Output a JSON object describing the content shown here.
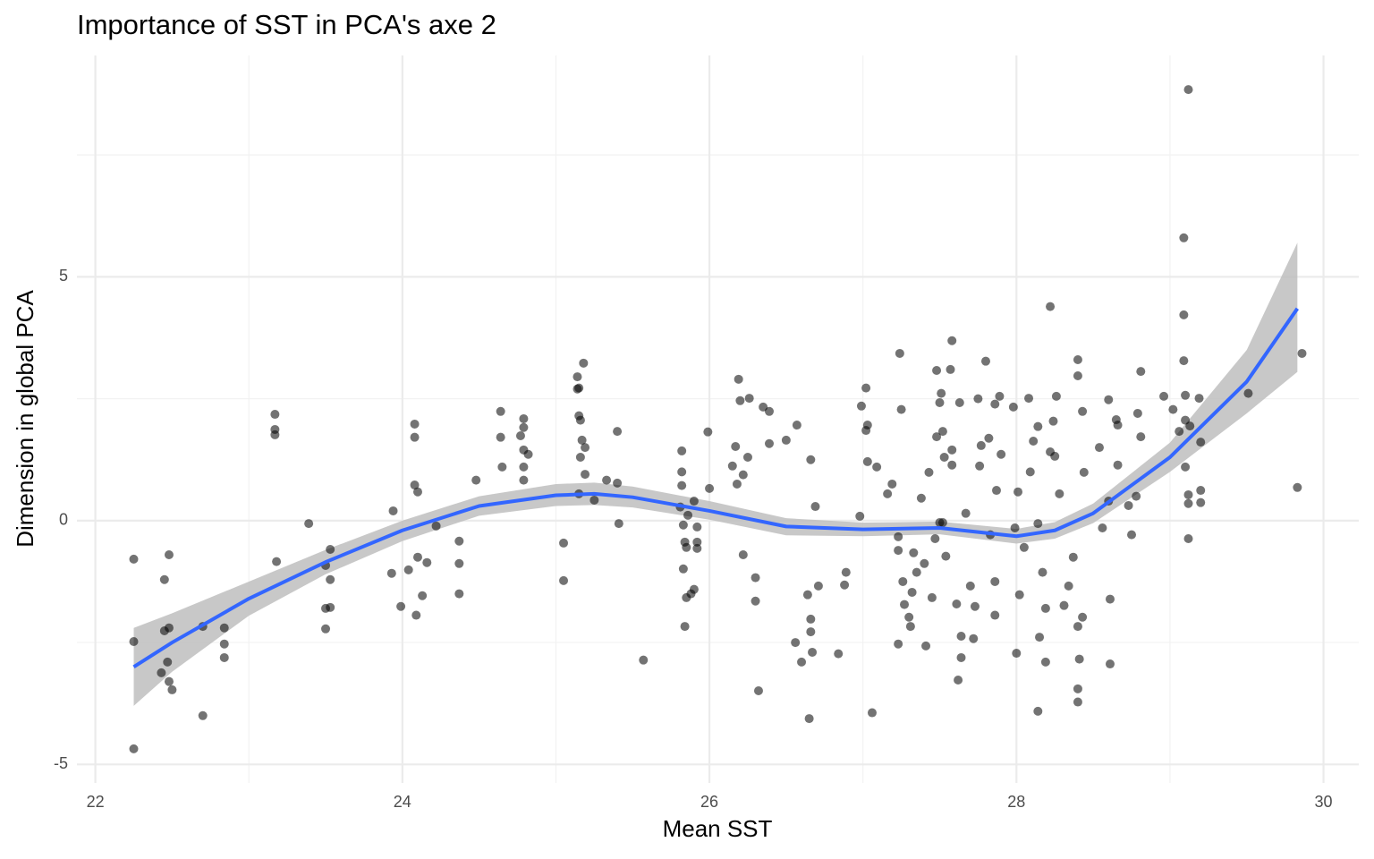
{
  "chart_data": {
    "type": "scatter",
    "title": "Importance of SST in PCA's axe 2",
    "x_label": "Mean SST",
    "y_label": "Dimension  in global PCA",
    "xlim": [
      21.88,
      30.23
    ],
    "ylim": [
      -5.38,
      9.54
    ],
    "xticks": [
      22,
      24,
      26,
      28,
      30
    ],
    "yticks": [
      -5,
      0,
      5
    ],
    "xminor": [
      23,
      25,
      27,
      29
    ],
    "yminor": [
      -2.5,
      2.5,
      7.5
    ],
    "grid": true,
    "color": "#000000",
    "x": [
      22.25,
      22.25,
      22.25,
      22.45,
      22.48,
      22.45,
      22.48,
      22.47,
      22.43,
      22.48,
      22.5,
      22.7,
      22.7,
      22.84,
      22.84,
      22.84,
      23.17,
      23.17,
      23.17,
      23.18,
      23.39,
      23.5,
      23.5,
      23.5,
      23.53,
      23.53,
      23.53,
      23.94,
      23.93,
      23.99,
      24.04,
      24.08,
      24.08,
      24.08,
      24.1,
      24.09,
      24.1,
      24.13,
      24.16,
      24.22,
      24.37,
      24.37,
      24.37,
      24.48,
      24.64,
      24.64,
      24.79,
      24.79,
      24.77,
      24.79,
      24.79,
      24.79,
      24.82,
      24.65,
      25.05,
      25.05,
      25.14,
      25.14,
      25.18,
      25.15,
      25.15,
      25.16,
      25.17,
      25.16,
      25.19,
      25.19,
      25.15,
      25.25,
      25.33,
      25.4,
      25.4,
      25.41,
      25.57,
      25.82,
      25.82,
      25.82,
      25.81,
      25.83,
      25.84,
      25.85,
      25.83,
      25.85,
      25.84,
      25.86,
      25.9,
      25.9,
      25.88,
      25.92,
      25.92,
      25.92,
      25.99,
      26.0,
      26.15,
      26.17,
      26.19,
      26.2,
      26.26,
      26.25,
      26.22,
      26.18,
      26.22,
      26.3,
      26.3,
      26.32,
      26.35,
      26.39,
      26.39,
      26.5,
      26.57,
      26.56,
      26.6,
      26.66,
      26.64,
      26.66,
      26.66,
      26.67,
      26.65,
      26.69,
      26.71,
      26.84,
      26.89,
      26.88,
      26.99,
      27.02,
      27.03,
      27.02,
      27.03,
      26.98,
      27.06,
      27.09,
      27.16,
      27.19,
      27.24,
      27.25,
      27.23,
      27.23,
      27.23,
      27.26,
      27.27,
      27.3,
      27.31,
      27.33,
      27.35,
      27.32,
      27.38,
      27.41,
      27.4,
      27.43,
      27.45,
      27.48,
      27.47,
      27.5,
      27.5,
      27.51,
      27.48,
      27.52,
      27.53,
      27.52,
      27.58,
      27.57,
      27.58,
      27.58,
      27.54,
      27.61,
      27.62,
      27.64,
      27.63,
      27.64,
      27.67,
      27.7,
      27.72,
      27.73,
      27.75,
      27.77,
      27.76,
      27.8,
      27.82,
      27.83,
      27.86,
      27.86,
      27.86,
      27.87,
      27.89,
      27.9,
      27.98,
      27.99,
      28.0,
      28.01,
      28.02,
      28.05,
      28.08,
      28.09,
      28.11,
      28.14,
      28.14,
      28.14,
      28.15,
      28.17,
      28.19,
      28.19,
      28.22,
      28.22,
      28.24,
      28.25,
      28.26,
      28.28,
      28.31,
      28.34,
      28.37,
      28.4,
      28.4,
      28.4,
      28.4,
      28.41,
      28.4,
      28.43,
      28.43,
      28.44,
      28.54,
      28.56,
      28.6,
      28.6,
      28.61,
      28.61,
      28.65,
      28.66,
      28.66,
      28.73,
      28.75,
      28.79,
      28.81,
      28.78,
      28.81,
      28.96,
      29.02,
      29.06,
      29.09,
      29.09,
      29.09,
      29.1,
      29.1,
      29.12,
      29.1,
      29.12,
      29.12,
      29.12,
      29.13,
      29.19,
      29.2,
      29.2,
      29.2,
      29.51,
      29.83,
      29.86
    ],
    "y": [
      -0.79,
      -2.48,
      -4.68,
      -1.21,
      -0.7,
      -2.26,
      -2.2,
      -2.9,
      -3.12,
      -3.3,
      -3.47,
      -2.17,
      -4.0,
      -2.2,
      -2.53,
      -2.81,
      2.18,
      1.87,
      1.76,
      -0.84,
      -0.06,
      -0.92,
      -1.8,
      -2.22,
      -0.59,
      -1.21,
      -1.78,
      0.2,
      -1.08,
      -1.76,
      -1.01,
      1.98,
      1.71,
      0.73,
      0.59,
      -1.94,
      -0.75,
      -1.54,
      -0.86,
      -0.11,
      -0.42,
      -0.88,
      -1.5,
      0.83,
      2.24,
      1.71,
      2.09,
      1.91,
      1.74,
      1.45,
      1.1,
      0.83,
      1.36,
      1.1,
      -0.46,
      -1.23,
      2.95,
      2.7,
      3.23,
      2.72,
      2.15,
      2.06,
      1.65,
      1.3,
      1.5,
      0.95,
      0.55,
      0.42,
      0.83,
      1.83,
      0.77,
      -0.06,
      -2.86,
      1.43,
      1.0,
      0.72,
      0.28,
      -0.09,
      -0.44,
      -0.55,
      -0.99,
      -1.58,
      -2.17,
      0.11,
      0.4,
      -1.41,
      -1.5,
      -0.13,
      -0.44,
      -0.57,
      1.82,
      0.66,
      1.12,
      1.52,
      2.9,
      2.46,
      2.51,
      1.3,
      0.94,
      0.75,
      -0.7,
      -1.17,
      -1.65,
      -3.49,
      2.33,
      2.24,
      1.58,
      1.65,
      1.96,
      -2.5,
      -2.9,
      1.25,
      -1.52,
      -2.02,
      -2.28,
      -2.7,
      -4.06,
      0.29,
      -1.34,
      -2.73,
      -1.06,
      -1.32,
      2.35,
      2.72,
      1.96,
      1.85,
      1.21,
      0.09,
      -3.94,
      1.1,
      0.55,
      0.75,
      3.43,
      2.28,
      -0.33,
      -0.61,
      -2.53,
      -1.25,
      -1.72,
      -1.98,
      -2.17,
      -0.66,
      -1.06,
      -1.47,
      0.46,
      -2.57,
      -0.88,
      0.99,
      -1.58,
      3.08,
      -0.37,
      -0.04,
      2.42,
      2.61,
      1.72,
      1.83,
      1.3,
      -0.04,
      3.69,
      3.1,
      1.14,
      1.45,
      -0.73,
      -1.71,
      -3.27,
      -2.37,
      2.42,
      -2.81,
      0.15,
      -1.34,
      -2.42,
      -1.76,
      2.5,
      1.54,
      1.12,
      3.27,
      1.69,
      -0.29,
      2.39,
      -1.94,
      -1.25,
      0.62,
      2.55,
      1.36,
      2.33,
      -0.15,
      -2.72,
      0.59,
      -1.52,
      -0.55,
      2.51,
      1.0,
      1.63,
      1.93,
      -0.06,
      -3.91,
      -2.39,
      -1.06,
      -1.8,
      -2.9,
      4.39,
      1.41,
      2.04,
      1.32,
      2.55,
      0.55,
      -1.74,
      -1.34,
      -0.75,
      3.3,
      2.97,
      -3.45,
      -3.72,
      -2.84,
      -2.17,
      -1.98,
      2.24,
      0.99,
      1.5,
      -0.15,
      2.48,
      0.4,
      -2.94,
      -1.61,
      2.07,
      1.96,
      1.14,
      0.31,
      -0.29,
      2.2,
      1.72,
      0.5,
      3.06,
      2.55,
      2.28,
      1.83,
      5.8,
      4.22,
      3.28,
      2.57,
      2.06,
      8.84,
      1.1,
      0.53,
      0.35,
      -0.37,
      1.94,
      2.51,
      1.61,
      0.62,
      0.37,
      2.61,
      0.68,
      3.43
    ],
    "smooth": {
      "color": "#3366ff",
      "band_color": "#bebebe",
      "x": [
        22.25,
        22.5,
        23,
        23.5,
        24,
        24.5,
        25,
        25.25,
        25.5,
        26,
        26.5,
        27,
        27.5,
        28,
        28.25,
        28.5,
        29,
        29.5,
        29.83
      ],
      "y": [
        -3.0,
        -2.5,
        -1.6,
        -0.85,
        -0.2,
        0.3,
        0.52,
        0.55,
        0.48,
        0.2,
        -0.12,
        -0.18,
        -0.15,
        -0.32,
        -0.2,
        0.15,
        1.3,
        2.85,
        4.35
      ],
      "lower": [
        -3.8,
        -3.1,
        -1.95,
        -1.1,
        -0.42,
        0.1,
        0.3,
        0.32,
        0.27,
        0.02,
        -0.3,
        -0.32,
        -0.28,
        -0.47,
        -0.37,
        -0.05,
        1.0,
        2.2,
        3.05
      ],
      "upper": [
        -2.2,
        -1.9,
        -1.25,
        -0.6,
        0.0,
        0.5,
        0.75,
        0.78,
        0.7,
        0.4,
        0.05,
        -0.04,
        -0.02,
        -0.17,
        -0.03,
        0.35,
        1.6,
        3.5,
        5.7
      ]
    }
  }
}
